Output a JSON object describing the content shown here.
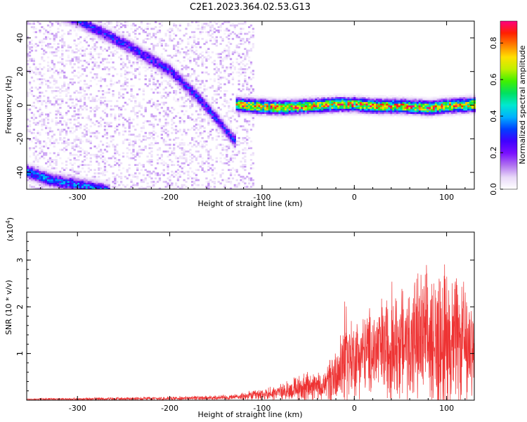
{
  "chart_data": [
    {
      "type": "heatmap",
      "title": "C2E1.2023.364.02.53.G13",
      "xlabel": "Height of straight line (km)",
      "ylabel": "Frequency (Hz)",
      "xlim": [
        -355,
        130
      ],
      "ylim": [
        -50,
        50
      ],
      "xticks": [
        -300,
        -200,
        -100,
        0,
        100
      ],
      "yticks": [
        -40,
        -20,
        0,
        20,
        40
      ],
      "colorbar": {
        "label": "Normalized spectral amplitude",
        "range": [
          0,
          0.92
        ],
        "ticks": [
          0.0,
          0.2,
          0.4,
          0.6,
          0.8
        ],
        "colormap": [
          "#ffffff",
          "#e8d8f8",
          "#b070f0",
          "#7a10ff",
          "#4000ff",
          "#0040ff",
          "#00b0ff",
          "#00e8d0",
          "#00e060",
          "#40f000",
          "#c0f000",
          "#ffe000",
          "#ff8000",
          "#ff2000",
          "#ff0080"
        ]
      },
      "tracks": [
        {
          "x": [
            -355,
            -300,
            -250,
            -200,
            -170,
            -145,
            -130
          ],
          "y": [
            60,
            50,
            36,
            20,
            4,
            -12,
            -22
          ],
          "peak": 0.32
        },
        {
          "x": [
            -355,
            -330,
            -300,
            -280,
            -265
          ],
          "y": [
            -40,
            -45,
            -48,
            -50,
            -52
          ],
          "peak": 0.4
        },
        {
          "x": [
            -130,
            -110,
            -80,
            -50,
            -20,
            0,
            20,
            50,
            80,
            100,
            130
          ],
          "y": [
            0,
            -1,
            -2,
            -1,
            0,
            0,
            -1,
            -1,
            -2,
            -1,
            0
          ],
          "peak": 0.85
        }
      ]
    },
    {
      "type": "line",
      "title": "",
      "xlabel": "Height of straight line (km)",
      "ylabel": "SNR (10 * v/v)",
      "scale_note": "(x10",
      "scale_exp": "4",
      "scale_close": ")",
      "xlim": [
        -355,
        130
      ],
      "ylim": [
        0,
        3.6
      ],
      "xticks": [
        -300,
        -200,
        -100,
        0,
        100
      ],
      "yticks": [
        1,
        2,
        3
      ],
      "series_color": "#ee3333",
      "envelope": {
        "x": [
          -355,
          -250,
          -150,
          -120,
          -100,
          -80,
          -60,
          -45,
          -35,
          -25,
          -15,
          -12,
          -5,
          10,
          30,
          50,
          70,
          90,
          100,
          110,
          130
        ],
        "baseline": [
          0.02,
          0.03,
          0.05,
          0.08,
          0.12,
          0.18,
          0.25,
          0.3,
          0.25,
          0.5,
          0.7,
          0.9,
          0.9,
          1.0,
          1.1,
          1.2,
          1.3,
          1.2,
          1.3,
          1.2,
          1.2
        ],
        "amplitude": [
          0.02,
          0.04,
          0.06,
          0.1,
          0.15,
          0.2,
          0.35,
          0.45,
          0.35,
          0.6,
          0.9,
          1.4,
          1.0,
          1.0,
          1.3,
          1.5,
          1.7,
          1.8,
          1.9,
          1.7,
          1.5
        ]
      }
    }
  ]
}
